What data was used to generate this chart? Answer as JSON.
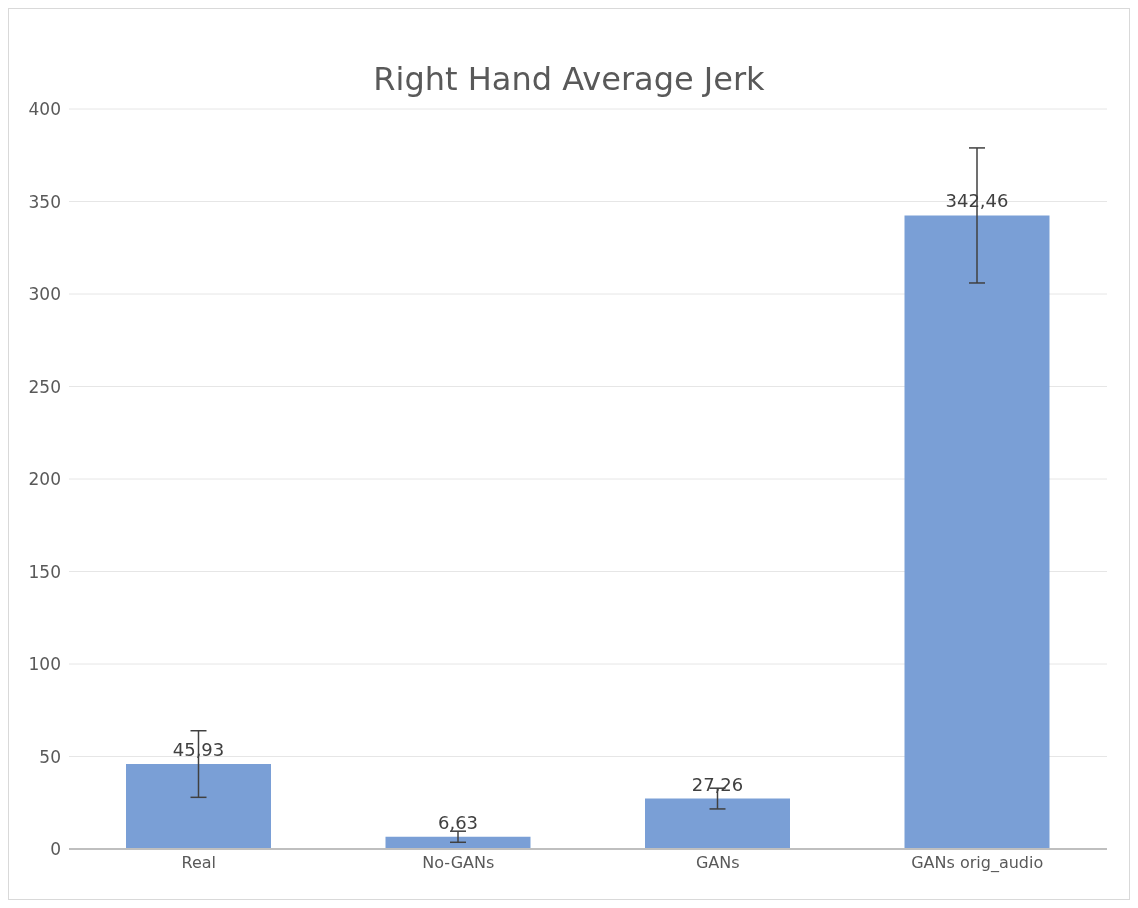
{
  "chart_data": {
    "type": "bar",
    "title": "Right Hand Average Jerk",
    "categories": [
      "Real",
      "No-GANs",
      "GANs",
      "GANs orig_audio"
    ],
    "values": [
      45.93,
      6.63,
      27.26,
      342.46
    ],
    "value_labels": [
      "45,93",
      "6,63",
      "27,26",
      "342,46"
    ],
    "errors": [
      18,
      3,
      5.6,
      36.5
    ],
    "color": "#7a9fd6",
    "ylim": [
      0,
      400
    ],
    "yticks": [
      0,
      50,
      100,
      150,
      200,
      250,
      300,
      350,
      400
    ],
    "grid": "y"
  }
}
